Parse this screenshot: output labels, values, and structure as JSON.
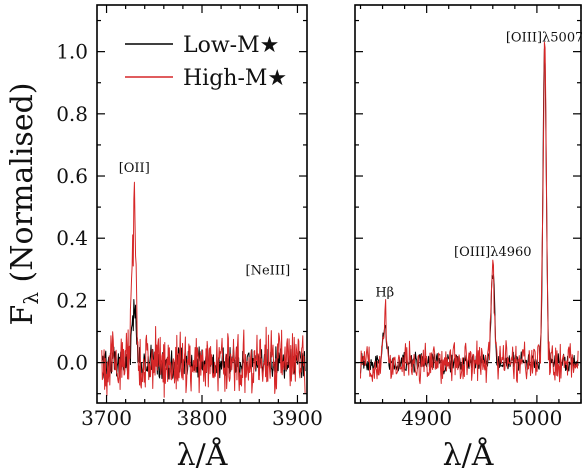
{
  "chart_data": [
    {
      "type": "line",
      "panel": "left",
      "xlabel": "λ/Å",
      "ylabel": "F_λ (Normalised)",
      "xlim": [
        3690,
        3910
      ],
      "ylim": [
        -0.13,
        1.15
      ],
      "xticks": [
        3700,
        3800,
        3900
      ],
      "yticks": [
        0.0,
        0.2,
        0.4,
        0.6,
        0.8,
        1.0
      ],
      "ytick_labels": [
        "0.0",
        "0.2",
        "0.4",
        "0.6",
        "0.8",
        "1.0"
      ],
      "reference_line": {
        "y": 0.0,
        "style": "dashed"
      },
      "annotations": [
        {
          "text": "[OII]",
          "x": 3729,
          "y": 0.6
        },
        {
          "text": "[NeIII]",
          "x": 3869,
          "y": 0.27
        }
      ],
      "legend": {
        "location": "upper-right",
        "entries": [
          "Low-M★",
          "High-M★"
        ]
      },
      "series": [
        {
          "name": "Low-M★",
          "color": "#000000",
          "line_profile": [
            {
              "center": 3727.1,
              "amplitude": 0.1,
              "sigma": 1.6
            },
            {
              "center": 3729.9,
              "amplitude": 0.13,
              "sigma": 1.6
            }
          ],
          "noise_amplitude": 0.04
        },
        {
          "name": "High-M★",
          "color": "#d62728",
          "line_profile": [
            {
              "center": 3727.1,
              "amplitude": 0.25,
              "sigma": 1.6
            },
            {
              "center": 3729.9,
              "amplitude": 0.4,
              "sigma": 1.6
            },
            {
              "center": 3869,
              "amplitude": 0.04,
              "sigma": 1.5
            }
          ],
          "noise_amplitude": 0.08
        }
      ]
    },
    {
      "type": "line",
      "panel": "right",
      "xlabel": "λ/Å",
      "xlim": [
        4835,
        5040
      ],
      "ylim": [
        -0.13,
        1.15
      ],
      "xticks": [
        4900,
        5000
      ],
      "reference_line": {
        "y": 0.0,
        "style": "dashed"
      },
      "annotations": [
        {
          "text": "Hβ",
          "x": 4862,
          "y": 0.2
        },
        {
          "text": "[OIII]λ4960",
          "x": 4960,
          "y": 0.33
        },
        {
          "text": "[OIII]λ5007",
          "x": 5007,
          "y": 1.02
        }
      ],
      "series": [
        {
          "name": "Low-M★",
          "color": "#000000",
          "line_profile": [
            {
              "center": 4862,
              "amplitude": 0.13,
              "sigma": 1.6
            },
            {
              "center": 4960,
              "amplitude": 0.3,
              "sigma": 1.5
            },
            {
              "center": 5007,
              "amplitude": 1.0,
              "sigma": 1.5
            }
          ],
          "noise_amplitude": 0.025
        },
        {
          "name": "High-M★",
          "color": "#d62728",
          "line_profile": [
            {
              "center": 4862,
              "amplitude": 0.16,
              "sigma": 1.6
            },
            {
              "center": 4960,
              "amplitude": 0.3,
              "sigma": 1.5
            },
            {
              "center": 5007,
              "amplitude": 1.0,
              "sigma": 1.5
            }
          ],
          "noise_amplitude": 0.05
        }
      ]
    }
  ]
}
